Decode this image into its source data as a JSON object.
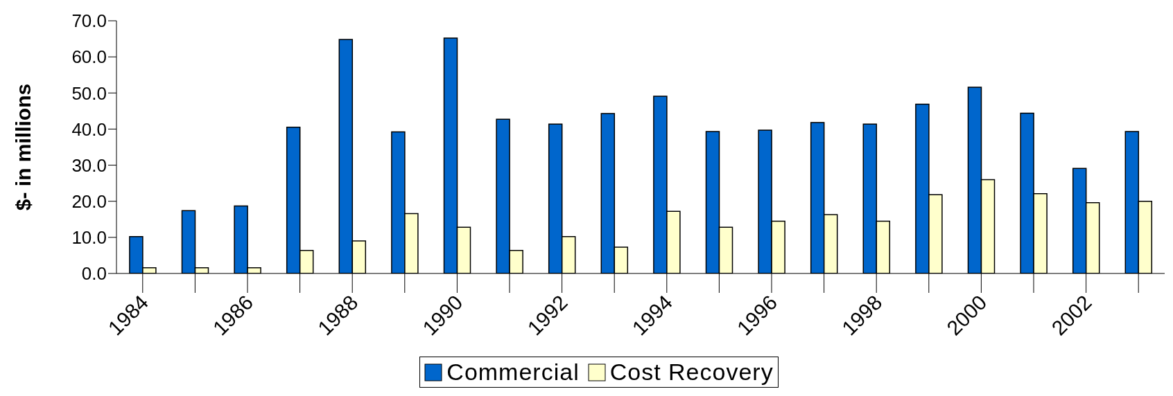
{
  "chart_data": {
    "type": "bar",
    "ylabel": "$- in millions",
    "categories": [
      "1984",
      null,
      "1986",
      null,
      "1988",
      null,
      "1990",
      null,
      "1992",
      null,
      "1994",
      null,
      "1996",
      null,
      "1998",
      null,
      "2000",
      null,
      "2002",
      null
    ],
    "series": [
      {
        "name": "Commercial",
        "color": "#0066cc",
        "values": [
          10.2,
          17.4,
          18.7,
          40.5,
          64.8,
          39.2,
          65.2,
          42.7,
          41.4,
          44.3,
          49.1,
          39.3,
          39.7,
          41.8,
          41.4,
          46.9,
          51.6,
          44.4,
          29.1,
          39.3
        ]
      },
      {
        "name": "Cost Recovery",
        "color": "#ffffcc",
        "values": [
          1.6,
          1.6,
          1.6,
          6.4,
          9.0,
          16.6,
          12.8,
          6.4,
          10.2,
          7.3,
          17.2,
          12.8,
          14.5,
          16.3,
          14.5,
          21.8,
          26.0,
          22.1,
          19.6,
          20.0
        ]
      }
    ],
    "ylim": [
      0,
      70
    ],
    "yticks": [
      {
        "value": 0,
        "label": "0.0"
      },
      {
        "value": 10,
        "label": "10.0"
      },
      {
        "value": 20,
        "label": "20.0"
      },
      {
        "value": 30,
        "label": "30.0"
      },
      {
        "value": 40,
        "label": "40.0"
      },
      {
        "value": 50,
        "label": "50.0"
      },
      {
        "value": 60,
        "label": "60.0"
      },
      {
        "value": 70,
        "label": "70.0"
      }
    ],
    "grid": false,
    "legend": "bottom"
  }
}
